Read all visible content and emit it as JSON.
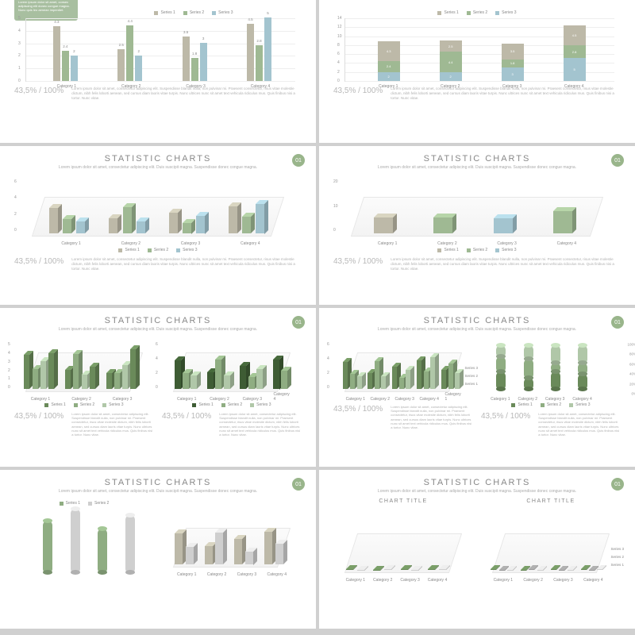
{
  "global": {
    "title": "STATISTIC CHARTS",
    "subtitle": "Lorem ipsum dolor sit amet, consectetur adipiscing elit. Duis suscipit magna. Suspendisse donec congue magna.",
    "badge": "01",
    "pct": "43,5% / 100%",
    "lorem": "Lorem ipsum dolor sit amet, consectetur adipiscing elit. Suspendisse blandit nulla, non pulvinar mi. Praesent consectetur, risus vitae molestie dictum, nibh felis loborti aenean, sed cursus diam laoris vitae turpis. Nunc ultrices nunc sit amet text vehicula ridiculus mus. Quis finibus nisi a tortor. Nunc vitae.",
    "series": [
      "Series 1",
      "Series 2",
      "Series 3"
    ],
    "categories": [
      "Category 1",
      "Category 2",
      "Category 3",
      "Category 4"
    ],
    "chart_title": "CHART TITLE"
  },
  "colors": {
    "s1": "#bdb9a8",
    "s2": "#9fb993",
    "s3": "#a3c4cf",
    "g1": "#6a8a5a",
    "g2": "#8fad82",
    "g3": "#b0c7a8",
    "g4": "#3e5c34",
    "grey": "#cfcfcf",
    "dgrey": "#9a9a9a",
    "bg": "#ffffff",
    "grid": "#eeeeee",
    "axis": "#dddddd",
    "callout": "#a8bfa0"
  },
  "slide1": {
    "callout": "Lorem ipsum dolor sit amet, consec adipiscing elit donec congue magna. Nunc quis leo aenean imperdiet.",
    "ylim": [
      0,
      5
    ],
    "ytick": [
      0,
      1,
      2,
      3,
      4,
      5
    ],
    "groups": [
      {
        "x": 10,
        "vals": [
          4.3,
          2.4,
          2.0
        ]
      },
      {
        "x": 34,
        "vals": [
          2.5,
          4.4,
          2.0
        ]
      },
      {
        "x": 58,
        "vals": [
          3.5,
          1.8,
          3.0
        ]
      },
      {
        "x": 82,
        "vals": [
          4.5,
          2.8,
          5.0
        ]
      }
    ]
  },
  "slide2": {
    "ylim": [
      0,
      14
    ],
    "ytick": [
      0,
      2,
      4,
      6,
      8,
      10,
      12,
      14
    ],
    "stacks": [
      {
        "x": 12,
        "vals": [
          2.0,
          2.4,
          4.3
        ]
      },
      {
        "x": 35,
        "vals": [
          2.0,
          4.4,
          2.5
        ]
      },
      {
        "x": 58,
        "vals": [
          3.0,
          1.8,
          3.5
        ]
      },
      {
        "x": 81,
        "vals": [
          5.0,
          2.8,
          4.5
        ]
      }
    ]
  },
  "slide3": {
    "ylim": [
      0,
      6
    ],
    "ytick": [
      0,
      2,
      4,
      6
    ],
    "bars": [
      {
        "x": 10,
        "h": 4.3,
        "c": "s1"
      },
      {
        "x": 15,
        "h": 2.4,
        "c": "s2"
      },
      {
        "x": 20,
        "h": 2.0,
        "c": "s3"
      },
      {
        "x": 32,
        "h": 2.5,
        "c": "s1"
      },
      {
        "x": 37,
        "h": 4.4,
        "c": "s2"
      },
      {
        "x": 42,
        "h": 2.0,
        "c": "s3"
      },
      {
        "x": 54,
        "h": 3.5,
        "c": "s1"
      },
      {
        "x": 59,
        "h": 1.8,
        "c": "s2"
      },
      {
        "x": 64,
        "h": 3.0,
        "c": "s3"
      },
      {
        "x": 76,
        "h": 4.5,
        "c": "s1"
      },
      {
        "x": 81,
        "h": 2.8,
        "c": "s2"
      },
      {
        "x": 86,
        "h": 5.0,
        "c": "s3"
      }
    ],
    "catx": [
      15,
      37,
      59,
      81
    ]
  },
  "slide4": {
    "ylim": [
      0,
      20
    ],
    "ytick": [
      0,
      10,
      20
    ],
    "bars": [
      {
        "x": 12,
        "h": 8.7,
        "c": "s1"
      },
      {
        "x": 34,
        "h": 8.9,
        "c": "s2"
      },
      {
        "x": 56,
        "h": 8.3,
        "c": "s3"
      },
      {
        "x": 78,
        "h": 12.3,
        "c": "s2"
      }
    ],
    "catx": [
      14,
      36,
      58,
      80
    ]
  },
  "slide5": {
    "left": {
      "ylim": [
        0,
        5
      ],
      "ytick": [
        0,
        1,
        2,
        3,
        4,
        5
      ],
      "bars": [
        {
          "x": 6,
          "h": 4.3,
          "c": "g1"
        },
        {
          "x": 12,
          "h": 2.5,
          "c": "g2"
        },
        {
          "x": 18,
          "h": 3.5,
          "c": "g3"
        },
        {
          "x": 24,
          "h": 4.5,
          "c": "g1"
        },
        {
          "x": 36,
          "h": 2.4,
          "c": "g1"
        },
        {
          "x": 42,
          "h": 4.4,
          "c": "g2"
        },
        {
          "x": 48,
          "h": 1.8,
          "c": "g3"
        },
        {
          "x": 54,
          "h": 2.8,
          "c": "g1"
        },
        {
          "x": 66,
          "h": 2.0,
          "c": "g1"
        },
        {
          "x": 72,
          "h": 2.0,
          "c": "g2"
        },
        {
          "x": 78,
          "h": 3.0,
          "c": "g3"
        },
        {
          "x": 84,
          "h": 5.0,
          "c": "g1"
        }
      ],
      "catx": [
        15,
        45,
        75
      ]
    },
    "right": {
      "ylim": [
        0,
        6
      ],
      "ytick": [
        0,
        2,
        4,
        6
      ],
      "bars": [
        {
          "x": 8,
          "h": 4.3,
          "c": "g4"
        },
        {
          "x": 14,
          "h": 2.4,
          "c": "g2"
        },
        {
          "x": 20,
          "h": 2.0,
          "c": "g3"
        },
        {
          "x": 32,
          "h": 2.5,
          "c": "g4"
        },
        {
          "x": 38,
          "h": 4.4,
          "c": "g2"
        },
        {
          "x": 44,
          "h": 2.0,
          "c": "g3"
        },
        {
          "x": 56,
          "h": 3.5,
          "c": "g4"
        },
        {
          "x": 62,
          "h": 1.8,
          "c": "g2"
        },
        {
          "x": 68,
          "h": 3.0,
          "c": "g3"
        },
        {
          "x": 80,
          "h": 4.5,
          "c": "g4"
        },
        {
          "x": 86,
          "h": 2.8,
          "c": "g2"
        }
      ],
      "catx": [
        14,
        38,
        62,
        84
      ]
    }
  },
  "slide6": {
    "left": {
      "ylim": [
        0,
        6
      ],
      "ytick": [
        0,
        2,
        4,
        6
      ],
      "bars": [
        {
          "x": 6,
          "h": 4.3,
          "c": "g1"
        },
        {
          "x": 11,
          "h": 2.4,
          "c": "g2"
        },
        {
          "x": 16,
          "h": 2.0,
          "c": "g3"
        },
        {
          "x": 24,
          "h": 2.5,
          "c": "g1"
        },
        {
          "x": 29,
          "h": 4.4,
          "c": "g2"
        },
        {
          "x": 34,
          "h": 2.0,
          "c": "g3"
        },
        {
          "x": 42,
          "h": 3.5,
          "c": "g1"
        },
        {
          "x": 47,
          "h": 1.8,
          "c": "g2"
        },
        {
          "x": 52,
          "h": 3.0,
          "c": "g3"
        },
        {
          "x": 60,
          "h": 4.5,
          "c": "g1"
        },
        {
          "x": 65,
          "h": 2.8,
          "c": "g2"
        },
        {
          "x": 70,
          "h": 5.0,
          "c": "g3"
        },
        {
          "x": 78,
          "h": 3.0,
          "c": "g1"
        },
        {
          "x": 83,
          "h": 4.0,
          "c": "g2"
        },
        {
          "x": 88,
          "h": 2.5,
          "c": "g3"
        }
      ],
      "catx": [
        12,
        30,
        48,
        66,
        84
      ],
      "sidelabels": [
        "Series 1",
        "Series 2",
        "Series 3"
      ]
    },
    "right": {
      "ylim": [
        0,
        100
      ],
      "ytick": [
        0,
        20,
        40,
        60,
        80,
        100
      ],
      "stacks": [
        {
          "x": 10,
          "vals": [
            40,
            35,
            25
          ]
        },
        {
          "x": 30,
          "vals": [
            25,
            45,
            30
          ]
        },
        {
          "x": 50,
          "vals": [
            40,
            20,
            40
          ]
        },
        {
          "x": 70,
          "vals": [
            35,
            25,
            40
          ]
        }
      ],
      "pct_labels": [
        "0%",
        "20%",
        "40%",
        "60%",
        "80%",
        "100%"
      ]
    }
  },
  "slide7": {
    "bars": [
      {
        "x": 20,
        "h": 65,
        "c": "g2"
      },
      {
        "x": 40,
        "h": 80,
        "c": "grey"
      },
      {
        "x": 60,
        "h": 55,
        "c": "g2"
      },
      {
        "x": 80,
        "h": 72,
        "c": "grey"
      }
    ]
  },
  "slide8": {
    "left": {
      "bars": [
        {
          "x": 8,
          "h": 42,
          "c": "g1"
        },
        {
          "x": 16,
          "h": 30,
          "c": "grey"
        },
        {
          "x": 28,
          "h": 25,
          "c": "g1"
        },
        {
          "x": 36,
          "h": 48,
          "c": "grey"
        },
        {
          "x": 48,
          "h": 36,
          "c": "g1"
        },
        {
          "x": 56,
          "h": 20,
          "c": "grey"
        },
        {
          "x": 68,
          "h": 46,
          "c": "g1"
        },
        {
          "x": 76,
          "h": 32,
          "c": "grey"
        }
      ],
      "catx": [
        12,
        32,
        52,
        72
      ]
    },
    "right": {
      "bars": [
        {
          "x": 6,
          "h": 40,
          "c": "g1"
        },
        {
          "x": 12,
          "h": 25,
          "c": "dgrey"
        },
        {
          "x": 18,
          "h": 20,
          "c": "grey"
        },
        {
          "x": 28,
          "h": 24,
          "c": "g1"
        },
        {
          "x": 34,
          "h": 45,
          "c": "dgrey"
        },
        {
          "x": 40,
          "h": 20,
          "c": "grey"
        },
        {
          "x": 50,
          "h": 34,
          "c": "g1"
        },
        {
          "x": 56,
          "h": 18,
          "c": "dgrey"
        },
        {
          "x": 62,
          "h": 30,
          "c": "grey"
        },
        {
          "x": 72,
          "h": 44,
          "c": "g1"
        },
        {
          "x": 78,
          "h": 28,
          "c": "dgrey"
        },
        {
          "x": 84,
          "h": 50,
          "c": "grey"
        }
      ],
      "catx": [
        12,
        34,
        56,
        78
      ],
      "sidelabels": [
        "Series 1",
        "Series 2",
        "Series 3"
      ]
    }
  }
}
